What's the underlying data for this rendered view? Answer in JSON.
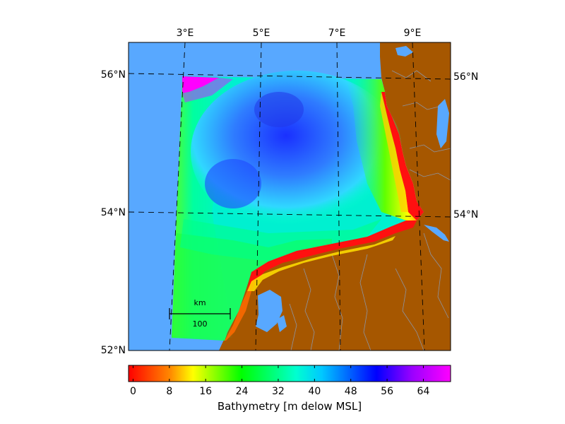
{
  "map": {
    "lon_labels": [
      "3°E",
      "5°E",
      "7°E",
      "9°E"
    ],
    "lat_labels_left": [
      "56°N",
      "54°N",
      "52°N"
    ],
    "lat_labels_right": [
      "56°N",
      "54°N"
    ],
    "colors": {
      "ocean": "#58a8ff",
      "land": "#a65700",
      "rivers": "#8a9bb5",
      "frame": "#000000"
    }
  },
  "scalebar": {
    "unit": "km",
    "value": "100"
  },
  "colorbar": {
    "label": "Bathymetry [m delow MSL]",
    "ticks": [
      "0",
      "8",
      "16",
      "24",
      "32",
      "40",
      "48",
      "56",
      "64"
    ],
    "min": -1,
    "max": 70,
    "colormap": "gist_rainbow_r"
  }
}
